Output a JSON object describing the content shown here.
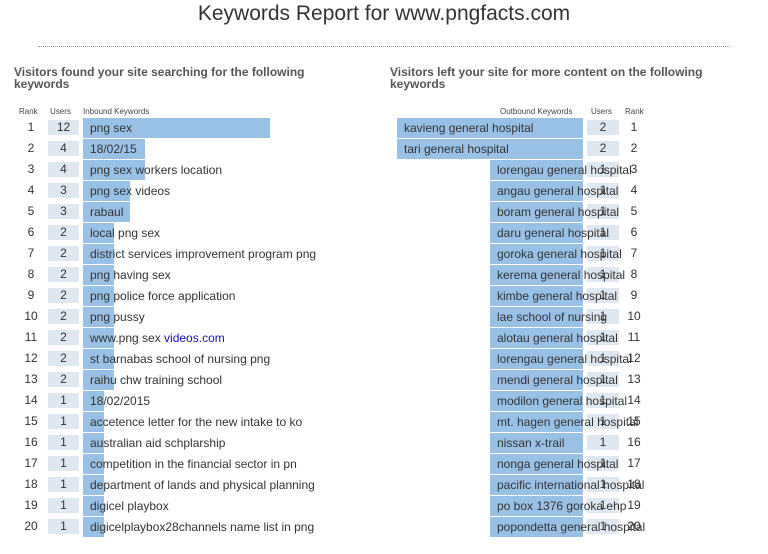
{
  "title": "Keywords Report for www.pngfacts.com",
  "left": {
    "section_title": "Visitors found your site searching for the following keywords",
    "headers": {
      "rank": "Rank",
      "users": "Users",
      "keyword": "Inbound Keywords"
    },
    "rows": [
      {
        "rank": "1",
        "users": "12",
        "keyword": "png sex"
      },
      {
        "rank": "2",
        "users": "4",
        "keyword": "18/02/15"
      },
      {
        "rank": "3",
        "users": "4",
        "keyword": "png sex workers location"
      },
      {
        "rank": "4",
        "users": "3",
        "keyword": "png sex videos"
      },
      {
        "rank": "5",
        "users": "3",
        "keyword": "rabaul"
      },
      {
        "rank": "6",
        "users": "2",
        "keyword": "local png sex"
      },
      {
        "rank": "7",
        "users": "2",
        "keyword": "district services improvement program png"
      },
      {
        "rank": "8",
        "users": "2",
        "keyword": "png having sex"
      },
      {
        "rank": "9",
        "users": "2",
        "keyword": "png police force application"
      },
      {
        "rank": "10",
        "users": "2",
        "keyword": "png pussy"
      },
      {
        "rank": "11",
        "users": "2",
        "keyword": "www.png sex ",
        "link": "videos.com"
      },
      {
        "rank": "12",
        "users": "2",
        "keyword": "st barnabas school of nursing png"
      },
      {
        "rank": "13",
        "users": "2",
        "keyword": "raihu chw training school"
      },
      {
        "rank": "14",
        "users": "1",
        "keyword": "18/02/2015"
      },
      {
        "rank": "15",
        "users": "1",
        "keyword": "accetence letter for the new intake to ko"
      },
      {
        "rank": "16",
        "users": "1",
        "keyword": "australian aid schplarship"
      },
      {
        "rank": "17",
        "users": "1",
        "keyword": "competition in the financial sector in pn"
      },
      {
        "rank": "18",
        "users": "1",
        "keyword": "department of lands and physical planning"
      },
      {
        "rank": "19",
        "users": "1",
        "keyword": "digicel playbox"
      },
      {
        "rank": "20",
        "users": "1",
        "keyword": "digicelplaybox28channels name list in png"
      }
    ]
  },
  "right": {
    "section_title": "Visitors left your site for more content on the following keywords",
    "headers": {
      "keyword": "Outbound Keywords",
      "users": "Users",
      "rank": "Rank"
    },
    "rows": [
      {
        "rank": "1",
        "users": "2",
        "keyword": "kavieng general hospital"
      },
      {
        "rank": "2",
        "users": "2",
        "keyword": "tari general hospital"
      },
      {
        "rank": "3",
        "users": "1",
        "keyword": "lorengau general hospital"
      },
      {
        "rank": "4",
        "users": "1",
        "keyword": "angau general hospital"
      },
      {
        "rank": "5",
        "users": "1",
        "keyword": "boram general hospital"
      },
      {
        "rank": "6",
        "users": "1",
        "keyword": "daru general hospital"
      },
      {
        "rank": "7",
        "users": "1",
        "keyword": "goroka general hospital"
      },
      {
        "rank": "8",
        "users": "1",
        "keyword": "kerema general hospital"
      },
      {
        "rank": "9",
        "users": "1",
        "keyword": "kimbe general hospital"
      },
      {
        "rank": "10",
        "users": "1",
        "keyword": "lae school of nursing"
      },
      {
        "rank": "11",
        "users": "1",
        "keyword": "alotau general hospital"
      },
      {
        "rank": "12",
        "users": "1",
        "keyword": "lorengau general hospital"
      },
      {
        "rank": "13",
        "users": "1",
        "keyword": "mendi general hospital"
      },
      {
        "rank": "14",
        "users": "1",
        "keyword": "modilon general hospital"
      },
      {
        "rank": "15",
        "users": "1",
        "keyword": "mt. hagen general hospital"
      },
      {
        "rank": "16",
        "users": "1",
        "keyword": "nissan x-trail"
      },
      {
        "rank": "17",
        "users": "1",
        "keyword": "nonga general hospital"
      },
      {
        "rank": "18",
        "users": "1",
        "keyword": "pacific international hospital"
      },
      {
        "rank": "19",
        "users": "1",
        "keyword": "po box 1376 goroka ehp"
      },
      {
        "rank": "20",
        "users": "1",
        "keyword": "popondetta general hospital"
      }
    ]
  },
  "colors": {
    "bar": "#98c1e5",
    "users_cell": "#dfe8f0",
    "link": "#1a0dab"
  }
}
